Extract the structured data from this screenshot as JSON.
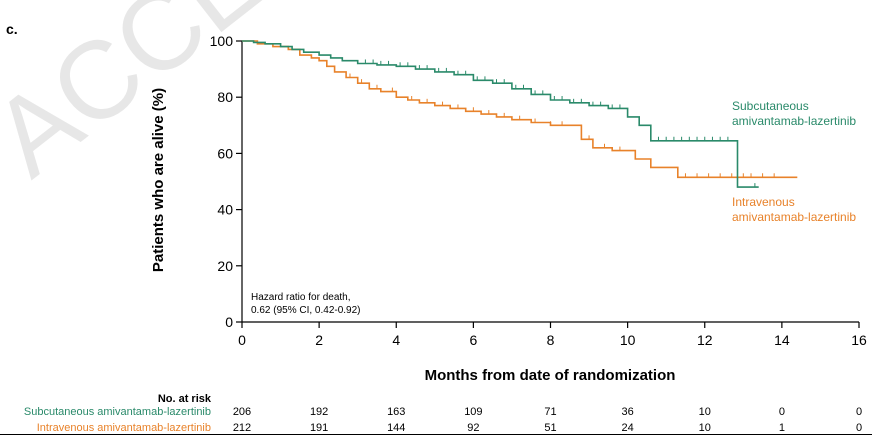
{
  "panel_label": "c.",
  "watermark": "ACCEPTED",
  "colors": {
    "subcutaneous": "#2a8a6a",
    "intravenous": "#e8822a",
    "axis": "#000000"
  },
  "chart_data": {
    "type": "line",
    "step": true,
    "xlabel": "Months from date of randomization",
    "ylabel": "Patients who are alive (%)",
    "xlim": [
      0,
      16
    ],
    "ylim": [
      0,
      100
    ],
    "xticks": [
      0,
      2,
      4,
      6,
      8,
      10,
      12,
      14,
      16
    ],
    "yticks": [
      0,
      20,
      40,
      60,
      80,
      100
    ],
    "grid": false,
    "annotation": {
      "line1": "Hazard ratio for death,",
      "line2": "0.62 (95% CI, 0.42-0.92)"
    },
    "series": [
      {
        "name": "Subcutaneous amivantamab-lazertinib",
        "legend_line1": "Subcutaneous",
        "legend_line2": "amivantamab-lazertinib",
        "points": [
          [
            0,
            100
          ],
          [
            0.3,
            99.5
          ],
          [
            0.6,
            99
          ],
          [
            1,
            98
          ],
          [
            1.3,
            97
          ],
          [
            1.6,
            96
          ],
          [
            2,
            95
          ],
          [
            2.3,
            94
          ],
          [
            2.6,
            93
          ],
          [
            3,
            92
          ],
          [
            3.5,
            91.5
          ],
          [
            4,
            91
          ],
          [
            4.5,
            90
          ],
          [
            5,
            89
          ],
          [
            5.5,
            88
          ],
          [
            6,
            86
          ],
          [
            6.5,
            85
          ],
          [
            7,
            83
          ],
          [
            7.5,
            81
          ],
          [
            8,
            79
          ],
          [
            8.5,
            78
          ],
          [
            9,
            77
          ],
          [
            9.5,
            76
          ],
          [
            10,
            73
          ],
          [
            10.3,
            70
          ],
          [
            10.6,
            64.5
          ],
          [
            12.85,
            64.5
          ],
          [
            12.85,
            48
          ],
          [
            13.4,
            48
          ]
        ],
        "censor_x": [
          3.2,
          3.4,
          3.6,
          3.8,
          4.1,
          4.3,
          4.6,
          4.8,
          5.1,
          5.3,
          5.6,
          5.8,
          6.1,
          6.3,
          6.6,
          6.8,
          7.1,
          7.3,
          7.6,
          7.8,
          8.1,
          8.3,
          8.6,
          8.8,
          9.1,
          9.3,
          9.6,
          9.8,
          10.8,
          11.0,
          11.2,
          11.4,
          11.6,
          11.8,
          12.0,
          12.2,
          12.4,
          12.6,
          13.3
        ]
      },
      {
        "name": "Intravenous amivantamab-lazertinib",
        "legend_line1": "Intravenous",
        "legend_line2": "amivantamab-lazertinib",
        "points": [
          [
            0,
            100
          ],
          [
            0.4,
            99
          ],
          [
            0.8,
            98
          ],
          [
            1.2,
            97
          ],
          [
            1.5,
            95
          ],
          [
            1.8,
            94
          ],
          [
            2,
            93
          ],
          [
            2.2,
            91
          ],
          [
            2.4,
            89
          ],
          [
            2.7,
            87
          ],
          [
            3,
            85
          ],
          [
            3.3,
            83
          ],
          [
            3.6,
            82
          ],
          [
            4,
            80
          ],
          [
            4.3,
            79
          ],
          [
            4.6,
            78
          ],
          [
            5,
            77
          ],
          [
            5.4,
            76
          ],
          [
            5.8,
            75
          ],
          [
            6.2,
            74
          ],
          [
            6.6,
            73
          ],
          [
            7,
            72
          ],
          [
            7.5,
            71
          ],
          [
            8,
            70
          ],
          [
            8.5,
            70
          ],
          [
            8.8,
            65
          ],
          [
            9.1,
            62
          ],
          [
            9.6,
            61
          ],
          [
            10,
            61
          ],
          [
            10.2,
            58
          ],
          [
            10.6,
            55
          ],
          [
            11.0,
            55
          ],
          [
            11.3,
            51.5
          ],
          [
            14.4,
            51.5
          ]
        ],
        "censor_x": [
          2.8,
          3.1,
          3.5,
          3.9,
          4.4,
          4.8,
          5.2,
          5.6,
          6.0,
          6.4,
          6.8,
          7.2,
          7.6,
          8.0,
          8.3,
          9.0,
          9.4,
          9.8,
          11.5,
          11.8,
          12.1,
          12.4,
          12.7,
          13.0,
          13.2,
          13.5,
          13.8
        ]
      }
    ]
  },
  "risk_table": {
    "header": "No. at risk",
    "rows": [
      {
        "label": "Subcutaneous amivantamab-lazertinib",
        "values": [
          "206",
          "192",
          "163",
          "109",
          "71",
          "36",
          "10",
          "0",
          "0"
        ]
      },
      {
        "label": "Intravenous amivantamab-lazertinib",
        "values": [
          "212",
          "191",
          "144",
          "92",
          "51",
          "24",
          "10",
          "1",
          "0"
        ]
      }
    ]
  }
}
